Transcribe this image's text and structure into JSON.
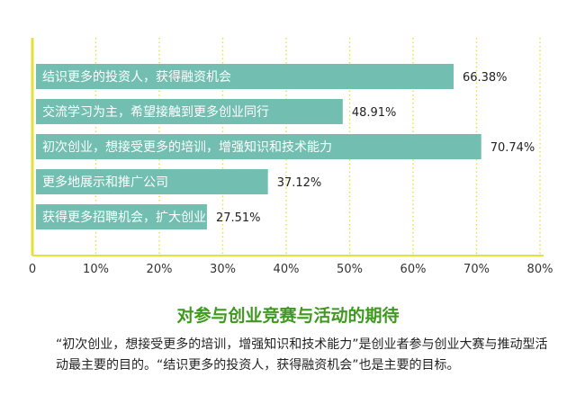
{
  "chart_data": {
    "type": "bar",
    "orientation": "horizontal",
    "categories": [
      "结识更多的投资人，获得融资机会",
      "交流学习为主，希望接触到更多创业同行",
      "初次创业，想接受更多的培训，增强知识和技术能力",
      "更多地展示和推广公司",
      "获得更多招聘机会，扩大创业团队"
    ],
    "values": [
      66.38,
      48.91,
      70.74,
      37.12,
      27.51
    ],
    "value_labels": [
      "66.38%",
      "48.91%",
      "70.74%",
      "37.12%",
      "27.51%"
    ],
    "xlim": [
      0,
      80
    ],
    "x_ticks": [
      "0",
      "10%",
      "20%",
      "30%",
      "40%",
      "50%",
      "60%",
      "70%",
      "80%"
    ],
    "grid": "vertical-dotted",
    "title": "对参与创业竞赛与活动的期待",
    "colors": {
      "bar": "#72bfb1",
      "axis": "#e4e23a",
      "grid": "#e4e23a",
      "title": "#3e9a1f"
    }
  },
  "caption": "“初次创业，想接受更多的培训，增强知识和技术能力”是创业者参与创业大赛与推动型活动最主要的目的。“结识更多的投资人，获得融资机会”也是主要的目标。"
}
